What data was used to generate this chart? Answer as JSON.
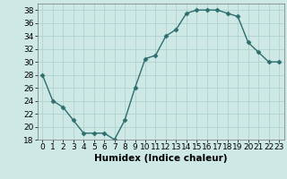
{
  "x": [
    0,
    1,
    2,
    3,
    4,
    5,
    6,
    7,
    8,
    9,
    10,
    11,
    12,
    13,
    14,
    15,
    16,
    17,
    18,
    19,
    20,
    21,
    22,
    23
  ],
  "y": [
    28,
    24,
    23,
    21,
    19,
    19,
    19,
    18,
    21,
    26,
    30.5,
    31,
    34,
    35,
    37.5,
    38,
    38,
    38,
    37.5,
    37,
    33,
    31.5,
    30,
    30
  ],
  "line_color": "#2d6e6e",
  "marker": "D",
  "marker_size": 2.5,
  "bg_color": "#cde8e5",
  "grid_color": "#aacfcc",
  "xlabel": "Humidex (Indice chaleur)",
  "ylim": [
    18,
    39
  ],
  "xlim": [
    -0.5,
    23.5
  ],
  "yticks": [
    18,
    20,
    22,
    24,
    26,
    28,
    30,
    32,
    34,
    36,
    38
  ],
  "xticks": [
    0,
    1,
    2,
    3,
    4,
    5,
    6,
    7,
    8,
    9,
    10,
    11,
    12,
    13,
    14,
    15,
    16,
    17,
    18,
    19,
    20,
    21,
    22,
    23
  ],
  "xlabel_fontsize": 7.5,
  "tick_fontsize": 6.5,
  "line_width": 1.0
}
